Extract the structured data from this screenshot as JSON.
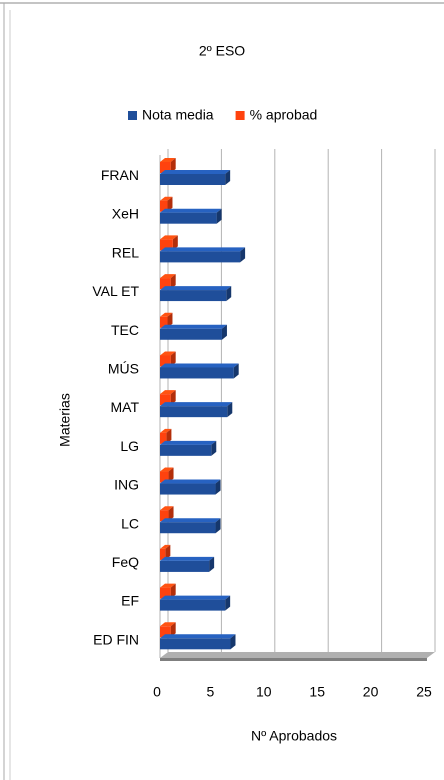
{
  "chart_data": {
    "type": "bar",
    "orientation": "horizontal",
    "title": "2º ESO",
    "x_label": "Nº Aprobados",
    "y_label": "Materias",
    "categories": [
      "FRAN",
      "XeH",
      "REL",
      "VAL ET",
      "TEC",
      "MÚS",
      "MAT",
      "LG",
      "ING",
      "LC",
      "FeQ",
      "EF",
      "ED FIN"
    ],
    "series": [
      {
        "name": "Nota media",
        "color": "#1f4e9a",
        "values": [
          6.1,
          5.3,
          7.5,
          6.2,
          5.8,
          6.9,
          6.3,
          4.8,
          5.2,
          5.2,
          4.6,
          6.1,
          6.6
        ]
      },
      {
        "name": "% aprobad",
        "color": "#ff420e",
        "values": [
          1.0,
          0.7,
          1.2,
          1.0,
          0.7,
          1.0,
          1.0,
          0.6,
          0.8,
          0.8,
          0.5,
          1.0,
          1.0
        ]
      }
    ],
    "xlim": [
      0,
      25
    ],
    "xticks": [
      0,
      5,
      10,
      15,
      20,
      25
    ],
    "grid": true,
    "legend": "top"
  }
}
